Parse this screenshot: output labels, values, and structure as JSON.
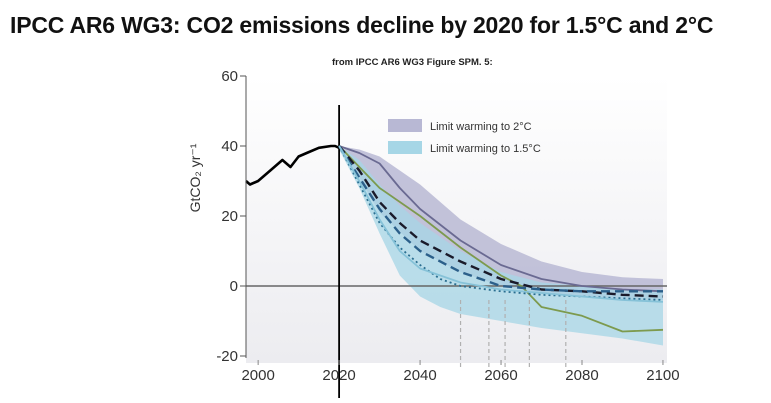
{
  "title": "IPCC AR6 WG3: CO2 emissions decline by 2020 for 1.5°C and 2°C",
  "chart_data": {
    "type": "area",
    "subtitle": "from IPCC AR6 WG3 Figure SPM. 5:",
    "ylabel": "GtCO₂ yr⁻¹",
    "xlabel": "",
    "xlim": [
      1997,
      2101
    ],
    "ylim": [
      -20,
      60
    ],
    "x_ticks": [
      "2000",
      "2020",
      "2040",
      "2060",
      "2080",
      "2100"
    ],
    "y_ticks": [
      "-20",
      "0",
      "20",
      "40",
      "60"
    ],
    "grid": false,
    "legend_position": "top-right",
    "legend": [
      {
        "label": "Limit warming to 2°C",
        "color": "#b8b8d4"
      },
      {
        "label": "Limit warming to 1.5°C",
        "color": "#a6d6e6"
      }
    ],
    "series": [
      {
        "name": "",
        "kind": "historical",
        "color": "#000000",
        "x": [
          1997,
          1998,
          2000,
          2003,
          2006,
          2008,
          2010,
          2012,
          2015,
          2018,
          2019,
          2020
        ],
        "y": [
          30,
          29,
          30,
          33,
          36,
          34,
          37,
          38,
          39.5,
          40,
          40,
          39.5
        ]
      },
      {
        "name": "Limit warming to 2°C",
        "kind": "band",
        "color": "#b8b8d4",
        "x": [
          2020,
          2025,
          2030,
          2040,
          2050,
          2060,
          2070,
          2080,
          2090,
          2100
        ],
        "upper": [
          40,
          39,
          37,
          29,
          19,
          12,
          7,
          4,
          2.5,
          2
        ],
        "lower": [
          39,
          31,
          21,
          10,
          4,
          0,
          -2,
          -3,
          -4,
          -4
        ]
      },
      {
        "name": "Limit warming to 1.5°C",
        "kind": "band",
        "color": "#a6d6e6",
        "x": [
          2020,
          2025,
          2030,
          2035,
          2040,
          2045,
          2050,
          2060,
          2070,
          2080,
          2090,
          2100
        ],
        "upper": [
          40,
          36,
          29,
          23,
          18,
          14,
          10,
          4,
          1,
          0,
          -1,
          -1
        ],
        "lower": [
          39,
          28,
          15,
          3,
          -3,
          -6,
          -8,
          -10,
          -12,
          -13.5,
          -15,
          -17
        ]
      },
      {
        "name": "",
        "kind": "line",
        "style": "solid",
        "color": "#6a6a92",
        "x": [
          2020,
          2025,
          2030,
          2035,
          2040,
          2050,
          2060,
          2070,
          2080,
          2090,
          2100
        ],
        "y": [
          40,
          38,
          35,
          28,
          22,
          13,
          6,
          2,
          0,
          -1,
          -1.5
        ]
      },
      {
        "name": "",
        "kind": "line",
        "style": "solid",
        "color": "#7d9a4e",
        "x": [
          2020,
          2025,
          2030,
          2040,
          2050,
          2060,
          2065,
          2070,
          2080,
          2090,
          2100
        ],
        "y": [
          40,
          34,
          28,
          20,
          11,
          3,
          0,
          -6,
          -8.5,
          -13,
          -12.5
        ]
      },
      {
        "name": "",
        "kind": "line",
        "style": "dashed",
        "color": "#1a1a2a",
        "x": [
          2020,
          2025,
          2030,
          2035,
          2040,
          2045,
          2050,
          2060,
          2070,
          2080,
          2090,
          2100
        ],
        "y": [
          40,
          33,
          24,
          18,
          13,
          10,
          7,
          2,
          -1,
          -1.5,
          -2.5,
          -3
        ]
      },
      {
        "name": "",
        "kind": "line",
        "style": "dashed",
        "color": "#2b5f8a",
        "x": [
          2020,
          2025,
          2030,
          2035,
          2040,
          2050,
          2060,
          2070,
          2080,
          2090,
          2100
        ],
        "y": [
          40,
          31,
          22,
          15,
          10,
          4,
          0,
          -1,
          -1.5,
          -1.5,
          -1.5
        ]
      },
      {
        "name": "",
        "kind": "line",
        "style": "dotted",
        "color": "#2a6e90",
        "x": [
          2020,
          2025,
          2030,
          2035,
          2040,
          2045,
          2050,
          2060,
          2070,
          2080,
          2090,
          2100
        ],
        "y": [
          40,
          29,
          18,
          11,
          6,
          2,
          0,
          -1.5,
          -2.5,
          -3,
          -3.5,
          -4
        ]
      },
      {
        "name": "",
        "kind": "line",
        "style": "solid",
        "color": "#86c2d8",
        "x": [
          2020,
          2025,
          2030,
          2035,
          2040,
          2050,
          2060,
          2070,
          2080,
          2090,
          2100
        ],
        "y": [
          40,
          30,
          19,
          10,
          5,
          1,
          -1,
          -2,
          -3,
          -4,
          -4.5
        ]
      }
    ],
    "annotations": [
      {
        "kind": "marker-line",
        "x": 2020,
        "style": "solid",
        "color": "#000000"
      },
      {
        "kind": "net-zero-markers",
        "style": "dashed",
        "color": "#b0b0b0",
        "x": [
          2050,
          2057,
          2061,
          2067,
          2076
        ]
      }
    ]
  }
}
